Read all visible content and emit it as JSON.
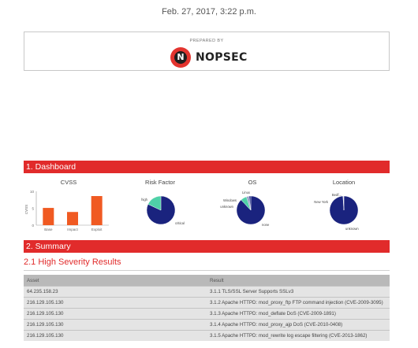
{
  "header": {
    "date": "Feb. 27, 2017, 3:22 p.m."
  },
  "prepared": {
    "label": "PREPARED BY",
    "logo_text": "NOPSEC",
    "logo_mark": "N"
  },
  "sections": {
    "dashboard": "1. Dashboard",
    "summary": "2. Summary"
  },
  "summary": {
    "subheading": "2.1 High Severity Results"
  },
  "colors": {
    "accent": "#e12b2b",
    "bar": "#f05a22",
    "pie_main": "#1a237e",
    "pie_teal": "#4fd1a8"
  },
  "chart_data": [
    {
      "type": "bar",
      "title": "CVSS",
      "ylabel": "CVSS",
      "categories": [
        "Base",
        "Impact",
        "Exploit"
      ],
      "values": [
        5.1,
        3.9,
        8.6
      ],
      "ylim": [
        0,
        10
      ],
      "yticks": [
        "10",
        "5",
        "0"
      ]
    },
    {
      "type": "pie",
      "title": "Risk Factor",
      "labels": [
        "critical",
        "high"
      ],
      "values": [
        82,
        18
      ]
    },
    {
      "type": "pie",
      "title": "OS",
      "labels": [
        "none",
        "unknown",
        "Windows",
        "Linux"
      ],
      "values": [
        88,
        7,
        3,
        2
      ]
    },
    {
      "type": "pie",
      "title": "Location",
      "labels": [
        "unknown",
        "New York",
        "Bedf..."
      ],
      "values": [
        99,
        0.5,
        0.5
      ]
    }
  ],
  "table": {
    "headers": {
      "asset": "Asset",
      "result": "Result"
    },
    "rows": [
      {
        "asset": "64.235.158.23",
        "result": "3.1.1 TLS/SSL Server Supports SSLv3"
      },
      {
        "asset": "216.129.105.130",
        "result": "3.1.2 Apache HTTPD: mod_proxy_ftp FTP command injection (CVE-2009-3095)"
      },
      {
        "asset": "216.129.105.130",
        "result": "3.1.3 Apache HTTPD: mod_deflate DoS (CVE-2009-1891)"
      },
      {
        "asset": "216.129.105.130",
        "result": "3.1.4 Apache HTTPD: mod_proxy_ajp DoS (CVE-2010-0408)"
      },
      {
        "asset": "216.129.105.130",
        "result": "3.1.5 Apache HTTPD: mod_rewrite log escape filtering (CVE-2013-1862)"
      }
    ]
  }
}
